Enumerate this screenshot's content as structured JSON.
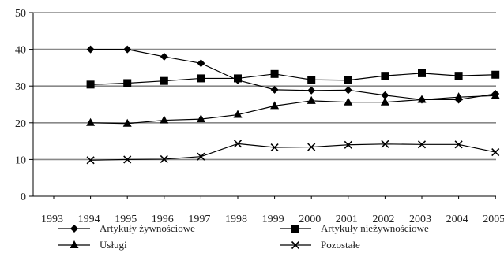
{
  "chart_data": {
    "type": "line",
    "title": "",
    "xlabel": "",
    "ylabel": "",
    "x": [
      "1993",
      "1994",
      "1995",
      "1996",
      "1997",
      "1998",
      "1999",
      "2000",
      "2001",
      "2002",
      "2003",
      "2004",
      "2005"
    ],
    "ylim": [
      0,
      50
    ],
    "yticks": [
      "0",
      "10",
      "20",
      "30",
      "40",
      "50"
    ],
    "grid": "horizontal",
    "legend_position": "bottom",
    "series": [
      {
        "name": "Artykuły żywnościowe",
        "marker": "diamond",
        "values": [
          null,
          40,
          40,
          38,
          36.2,
          31.6,
          29,
          28.8,
          28.9,
          27.5,
          26.3,
          26.3,
          27.9
        ]
      },
      {
        "name": "Artykuły nieżywnościowe",
        "marker": "square",
        "values": [
          null,
          30.4,
          30.8,
          31.4,
          32.1,
          32.1,
          33.3,
          31.7,
          31.6,
          32.8,
          33.5,
          32.8,
          33.1
        ]
      },
      {
        "name": "Usługi",
        "marker": "triangle",
        "values": [
          null,
          20,
          19.8,
          20.7,
          21,
          22.2,
          24.6,
          26,
          25.6,
          25.6,
          26.3,
          27,
          27.4
        ]
      },
      {
        "name": "Pozostałe",
        "marker": "x",
        "values": [
          null,
          9.8,
          10,
          10.1,
          10.8,
          14.3,
          13.3,
          13.4,
          14,
          14.2,
          14.1,
          14.1,
          12
        ]
      }
    ],
    "colors": {
      "line": "#000000",
      "grid": "#888888",
      "axis": "#000000"
    }
  }
}
